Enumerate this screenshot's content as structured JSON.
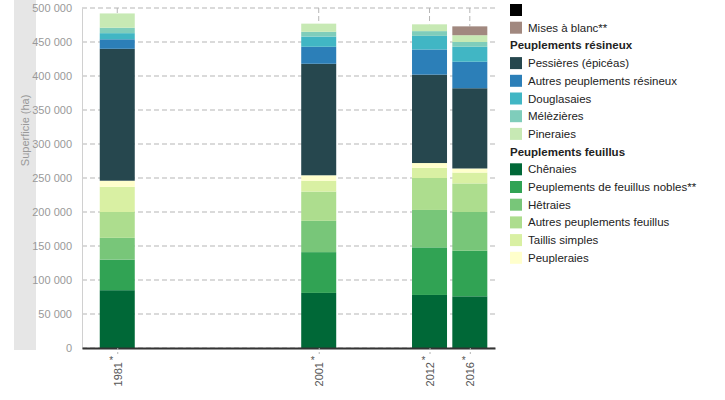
{
  "chart_data": {
    "type": "bar",
    "stacked": true,
    "grid": true,
    "y_label": "Superficie (ha)",
    "x": [
      1981,
      2001,
      2012,
      2016
    ],
    "xlim": [
      1977.5,
      2018.5
    ],
    "xticks": [
      1981,
      2001,
      2012,
      2016
    ],
    "ylim": [
      0,
      500000
    ],
    "yticks": [
      0,
      {
        "value": 50000,
        "label": "50 000"
      },
      {
        "value": 100000,
        "label": "100 000"
      },
      {
        "value": 150000,
        "label": "150 000"
      },
      {
        "value": 200000,
        "label": "200 000"
      },
      {
        "value": 250000,
        "label": "250 000"
      },
      {
        "value": 300000,
        "label": "300 000"
      },
      {
        "value": 350000,
        "label": "350 000"
      },
      {
        "value": 400000,
        "label": "400 000"
      },
      {
        "value": 450000,
        "label": "450 000"
      },
      {
        "value": 500000,
        "label": "500 000"
      }
    ],
    "annotations": [
      {
        "x": 1981,
        "text": "*"
      },
      {
        "x": 2001,
        "text": "*"
      },
      {
        "x": 2012,
        "text": "*"
      },
      {
        "x": 2016,
        "text": "*"
      }
    ],
    "series": [
      {
        "name": "Chênaies",
        "group": "Peuplements feuillus",
        "color": "#006837",
        "values": [
          85000,
          81000,
          78000,
          76000
        ]
      },
      {
        "name": "Peuplements de feuillus nobles**",
        "group": "Peuplements feuillus",
        "color": "#31a354",
        "values": [
          45000,
          60000,
          70000,
          67000
        ]
      },
      {
        "name": "Hêtraies",
        "group": "Peuplements feuillus",
        "color": "#78c679",
        "values": [
          32000,
          46000,
          55000,
          57000
        ]
      },
      {
        "name": "Autres peuplements feuillus",
        "group": "Peuplements feuillus",
        "color": "#addd8e",
        "values": [
          38000,
          43000,
          47000,
          42000
        ]
      },
      {
        "name": "Taillis simples",
        "group": "Peuplements feuillus",
        "color": "#d9f0a3",
        "values": [
          37000,
          16000,
          15000,
          16000
        ]
      },
      {
        "name": "Peupleraies",
        "group": "Peuplements feuillus",
        "color": "#ffffcc",
        "values": [
          9000,
          8000,
          7000,
          6000
        ]
      },
      {
        "name": "Pessières (épicéas)",
        "group": "Peuplements résineux",
        "color": "#26474e",
        "values": [
          194000,
          164000,
          130000,
          118000
        ]
      },
      {
        "name": "Autres peuplements résineux",
        "group": "Peuplements résineux",
        "color": "#2c7fb8",
        "values": [
          14000,
          25000,
          37000,
          39000
        ]
      },
      {
        "name": "Douglasaies",
        "group": "Peuplements résineux",
        "color": "#41b6c4",
        "values": [
          9000,
          15000,
          20000,
          22000
        ]
      },
      {
        "name": "Mélèzières",
        "group": "Peuplements résineux",
        "color": "#7fcdbb",
        "values": [
          8000,
          7000,
          7000,
          7000
        ]
      },
      {
        "name": "Pineraies",
        "group": "Peuplements résineux",
        "color": "#c7e9b4",
        "values": [
          21000,
          12000,
          10000,
          10000
        ]
      },
      {
        "name": null,
        "group": null,
        "color": "#000000",
        "values": [
          0,
          0,
          0,
          0
        ]
      },
      {
        "name": "Mises à blanc**",
        "group": null,
        "color": "#a1887f",
        "values": [
          0,
          0,
          0,
          13000
        ]
      }
    ]
  }
}
